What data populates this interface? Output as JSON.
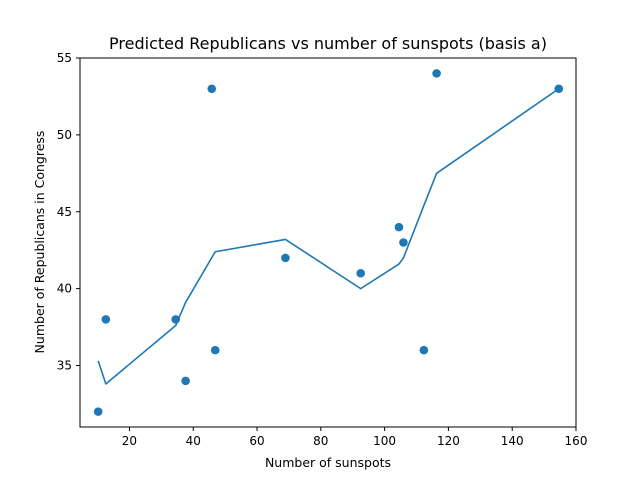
{
  "chart_data": {
    "type": "scatter",
    "title": "Predicted Republicans vs number of sunspots (basis a)",
    "xlabel": "Number of sunspots",
    "ylabel": "Number of Republicans in Congress",
    "xlim": [
      4.5,
      160
    ],
    "ylim": [
      31,
      55
    ],
    "xticks": [
      20,
      40,
      60,
      80,
      100,
      120,
      140,
      160
    ],
    "yticks": [
      35,
      40,
      45,
      50,
      55
    ],
    "grid": false,
    "legend": "none",
    "colors": {
      "series": "#1f77b4"
    },
    "series": [
      {
        "kind": "scatter",
        "points": [
          {
            "x": 10.2,
            "y": 32
          },
          {
            "x": 12.6,
            "y": 38
          },
          {
            "x": 34.5,
            "y": 38
          },
          {
            "x": 37.6,
            "y": 34
          },
          {
            "x": 45.8,
            "y": 53
          },
          {
            "x": 46.9,
            "y": 36
          },
          {
            "x": 68.9,
            "y": 42
          },
          {
            "x": 92.5,
            "y": 41
          },
          {
            "x": 104.5,
            "y": 44
          },
          {
            "x": 105.9,
            "y": 43
          },
          {
            "x": 112.3,
            "y": 36
          },
          {
            "x": 116.3,
            "y": 54
          },
          {
            "x": 154.6,
            "y": 53
          }
        ]
      },
      {
        "kind": "line",
        "points": [
          {
            "x": 10.2,
            "y": 35.3
          },
          {
            "x": 12.6,
            "y": 33.8
          },
          {
            "x": 34.5,
            "y": 37.6
          },
          {
            "x": 37.6,
            "y": 39.1
          },
          {
            "x": 46.9,
            "y": 42.4
          },
          {
            "x": 68.9,
            "y": 43.2
          },
          {
            "x": 92.5,
            "y": 40.0
          },
          {
            "x": 104.5,
            "y": 41.6
          },
          {
            "x": 105.9,
            "y": 42.0
          },
          {
            "x": 112.3,
            "y": 45.4
          },
          {
            "x": 116.3,
            "y": 47.5
          },
          {
            "x": 154.6,
            "y": 53.0
          }
        ]
      }
    ]
  }
}
